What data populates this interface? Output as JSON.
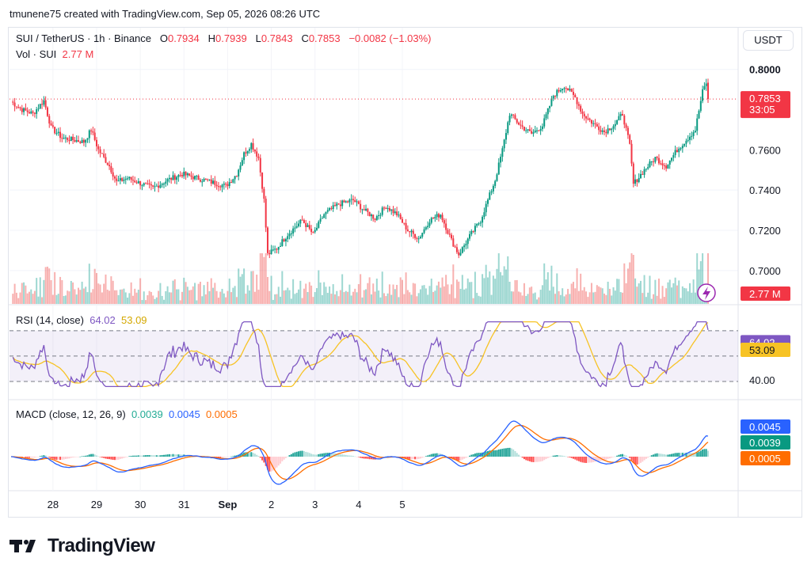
{
  "caption": "tmunene75 created with TradingView.com, Sep 05, 2026 08:26 UTC",
  "currency_button": "USDT",
  "brand": {
    "name": "TradingView",
    "logo_icon": "tradingview-logo-icon"
  },
  "symbol_legend": {
    "symbol": "SUI / TetherUS · 1h · Binance",
    "o_label": "O",
    "o_value": "0.7934",
    "h_label": "H",
    "h_value": "0.7939",
    "l_label": "L",
    "l_value": "0.7843",
    "c_label": "C",
    "c_value": "0.7853",
    "change": "−0.0082 (−1.03%)"
  },
  "volume_legend": {
    "label": "Vol · SUI",
    "value": "2.77 M"
  },
  "rsi_legend": {
    "label": "RSI (14, close)",
    "rsi_value": "64.02",
    "ma_value": "53.09"
  },
  "macd_legend": {
    "label": "MACD (close, 12, 26, 9)",
    "hist_value": "0.0039",
    "macd_value": "0.0045",
    "signal_value": "0.0005"
  },
  "price_axis_ticks": [
    "0.8000",
    "0.7600",
    "0.7400",
    "0.7200",
    "0.7000"
  ],
  "price_badge": {
    "price": "0.7853",
    "countdown": "33:05"
  },
  "volume_badge": "2.77 M",
  "rsi_axis_tick": "40.00",
  "rsi_badges": {
    "rsi": "64.02",
    "ma": "53.09"
  },
  "macd_badges": {
    "macd": "0.0045",
    "hist": "0.0039",
    "signal": "0.0005"
  },
  "time_axis_labels": [
    "28",
    "29",
    "30",
    "31",
    "Sep",
    "2",
    "3",
    "4",
    "5"
  ],
  "colors": {
    "up": "#089981",
    "down": "#f23645",
    "rsi": "#7e57c2",
    "rsi_ma": "#f7c325",
    "macd": "#2962ff",
    "signal": "#ff6d00",
    "hist_up": "#26a69a",
    "hist_down": "#ef5350"
  },
  "chart_data": {
    "type": "candlestick",
    "timeframe": "1h",
    "x_range": [
      "Aug 27",
      "Sep 5"
    ],
    "price_range": [
      0.696,
      0.805
    ],
    "close_path": [
      {
        "t": 0,
        "c": 0.784
      },
      {
        "t": 6,
        "c": 0.78
      },
      {
        "t": 12,
        "c": 0.778
      },
      {
        "t": 18,
        "c": 0.7845
      },
      {
        "t": 22,
        "c": 0.771
      },
      {
        "t": 28,
        "c": 0.766
      },
      {
        "t": 34,
        "c": 0.765
      },
      {
        "t": 40,
        "c": 0.764
      },
      {
        "t": 44,
        "c": 0.77
      },
      {
        "t": 48,
        "c": 0.76
      },
      {
        "t": 54,
        "c": 0.752
      },
      {
        "t": 58,
        "c": 0.744
      },
      {
        "t": 64,
        "c": 0.746
      },
      {
        "t": 72,
        "c": 0.743
      },
      {
        "t": 78,
        "c": 0.741
      },
      {
        "t": 86,
        "c": 0.745
      },
      {
        "t": 94,
        "c": 0.748
      },
      {
        "t": 102,
        "c": 0.746
      },
      {
        "t": 110,
        "c": 0.744
      },
      {
        "t": 118,
        "c": 0.742
      },
      {
        "t": 124,
        "c": 0.748
      },
      {
        "t": 128,
        "c": 0.758
      },
      {
        "t": 132,
        "c": 0.763
      },
      {
        "t": 136,
        "c": 0.756
      },
      {
        "t": 139,
        "c": 0.735
      },
      {
        "t": 141,
        "c": 0.708
      },
      {
        "t": 146,
        "c": 0.711
      },
      {
        "t": 152,
        "c": 0.718
      },
      {
        "t": 160,
        "c": 0.725
      },
      {
        "t": 166,
        "c": 0.718
      },
      {
        "t": 172,
        "c": 0.728
      },
      {
        "t": 180,
        "c": 0.733
      },
      {
        "t": 188,
        "c": 0.735
      },
      {
        "t": 194,
        "c": 0.73
      },
      {
        "t": 200,
        "c": 0.726
      },
      {
        "t": 206,
        "c": 0.732
      },
      {
        "t": 212,
        "c": 0.728
      },
      {
        "t": 218,
        "c": 0.72
      },
      {
        "t": 224,
        "c": 0.716
      },
      {
        "t": 230,
        "c": 0.725
      },
      {
        "t": 236,
        "c": 0.728
      },
      {
        "t": 242,
        "c": 0.715
      },
      {
        "t": 246,
        "c": 0.708
      },
      {
        "t": 252,
        "c": 0.717
      },
      {
        "t": 258,
        "c": 0.725
      },
      {
        "t": 262,
        "c": 0.735
      },
      {
        "t": 266,
        "c": 0.745
      },
      {
        "t": 270,
        "c": 0.76
      },
      {
        "t": 274,
        "c": 0.778
      },
      {
        "t": 280,
        "c": 0.772
      },
      {
        "t": 286,
        "c": 0.768
      },
      {
        "t": 292,
        "c": 0.772
      },
      {
        "t": 298,
        "c": 0.787
      },
      {
        "t": 304,
        "c": 0.792
      },
      {
        "t": 310,
        "c": 0.786
      },
      {
        "t": 314,
        "c": 0.778
      },
      {
        "t": 320,
        "c": 0.773
      },
      {
        "t": 326,
        "c": 0.769
      },
      {
        "t": 332,
        "c": 0.773
      },
      {
        "t": 336,
        "c": 0.778
      },
      {
        "t": 340,
        "c": 0.762
      },
      {
        "t": 342,
        "c": 0.743
      },
      {
        "t": 348,
        "c": 0.75
      },
      {
        "t": 354,
        "c": 0.756
      },
      {
        "t": 360,
        "c": 0.752
      },
      {
        "t": 366,
        "c": 0.76
      },
      {
        "t": 372,
        "c": 0.766
      },
      {
        "t": 376,
        "c": 0.77
      },
      {
        "t": 380,
        "c": 0.789
      },
      {
        "t": 382,
        "c": 0.7934
      },
      {
        "t": 383,
        "c": 0.7853
      }
    ],
    "last": {
      "o": 0.7934,
      "h": 0.7939,
      "l": 0.7843,
      "c": 0.7853
    },
    "volume_last": "2.77 M",
    "rsi": {
      "period": 14,
      "last": 64.02,
      "ma_last": 53.09,
      "levels": [
        70,
        50,
        30
      ],
      "range": [
        25,
        78
      ]
    },
    "macd": {
      "fast": 12,
      "slow": 26,
      "signal": 9,
      "macd_last": 0.0045,
      "signal_last": 0.0005,
      "hist_last": 0.0039
    }
  }
}
